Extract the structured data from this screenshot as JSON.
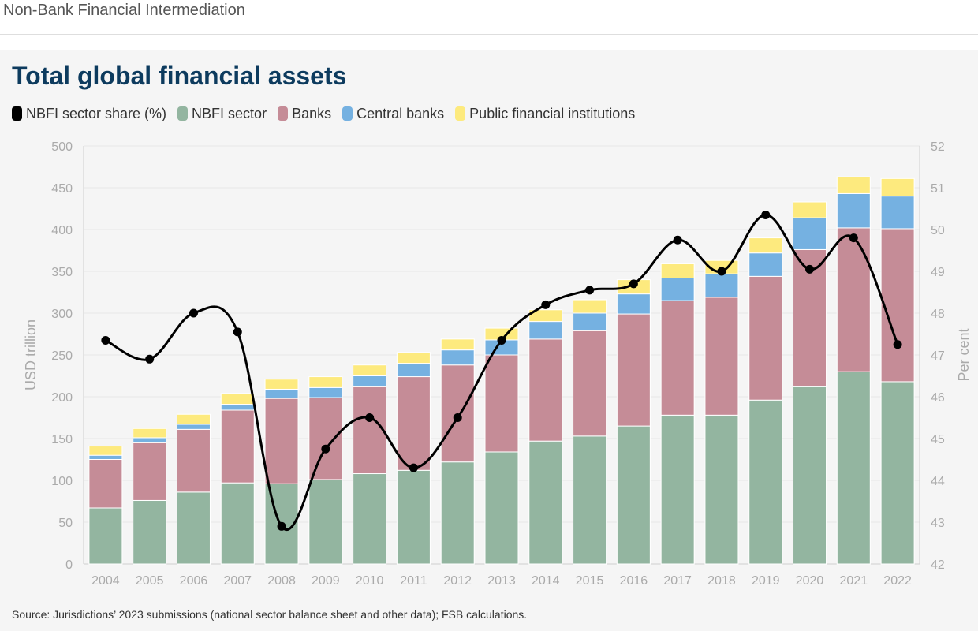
{
  "header": {
    "title": "Non-Bank Financial Intermediation"
  },
  "colors": {
    "nbfi": "#93b5a0",
    "banks": "#c58c97",
    "central_banks": "#75b1e1",
    "public": "#fdea7e",
    "line": "#000000",
    "grid": "#e8e8e8",
    "axis_text": "#aaaaaa",
    "title": "#0d3b5e"
  },
  "legend": [
    {
      "label": "NBFI sector share (%)",
      "color": "#000000"
    },
    {
      "label": "NBFI sector",
      "color": "#93b5a0"
    },
    {
      "label": "Banks",
      "color": "#c58c97"
    },
    {
      "label": "Central banks",
      "color": "#75b1e1"
    },
    {
      "label": "Public financial institutions",
      "color": "#fdea7e"
    }
  ],
  "source": "Source: Jurisdictions’ 2023 submissions (national sector balance sheet and other data); FSB calculations.",
  "chart_data": {
    "type": "bar",
    "stacked": true,
    "title": "Total global financial assets",
    "ylabel": "USD trillion",
    "y2label": "Per cent",
    "ylim": [
      0,
      500
    ],
    "y2lim": [
      42,
      52
    ],
    "yticks": [
      "0",
      "50",
      "100",
      "150",
      "200",
      "250",
      "300",
      "350",
      "400",
      "450",
      "500"
    ],
    "y2ticks": [
      "42",
      "43",
      "44",
      "45",
      "46",
      "47",
      "48",
      "49",
      "50",
      "51",
      "52"
    ],
    "categories": [
      "2004",
      "2005",
      "2006",
      "2007",
      "2008",
      "2009",
      "2010",
      "2011",
      "2012",
      "2013",
      "2014",
      "2015",
      "2016",
      "2017",
      "2018",
      "2019",
      "2020",
      "2021",
      "2022"
    ],
    "series": [
      {
        "name": "NBFI sector",
        "values": [
          67,
          76,
          86,
          97,
          96,
          101,
          108,
          112,
          122,
          134,
          147,
          153,
          165,
          178,
          178,
          196,
          212,
          230,
          218
        ]
      },
      {
        "name": "Banks",
        "values": [
          58,
          69,
          75,
          87,
          102,
          98,
          104,
          112,
          116,
          116,
          122,
          126,
          134,
          137,
          141,
          148,
          164,
          172,
          183
        ]
      },
      {
        "name": "Central banks",
        "values": [
          5,
          6,
          6,
          7,
          11,
          12,
          13,
          16,
          18,
          18,
          21,
          21,
          24,
          27,
          28,
          28,
          38,
          41,
          39
        ]
      },
      {
        "name": "Public financial institutions",
        "values": [
          11,
          11,
          12,
          13,
          12,
          13,
          13,
          13,
          13,
          14,
          14,
          16,
          17,
          17,
          16,
          18,
          19,
          20,
          21
        ]
      }
    ],
    "line_series": {
      "name": "NBFI sector share (%)",
      "axis": "right",
      "values": [
        47.35,
        46.9,
        48.0,
        47.55,
        42.9,
        44.75,
        45.5,
        44.3,
        45.5,
        47.35,
        48.2,
        48.55,
        48.7,
        49.75,
        49.0,
        50.35,
        49.05,
        49.8,
        47.25
      ]
    }
  }
}
